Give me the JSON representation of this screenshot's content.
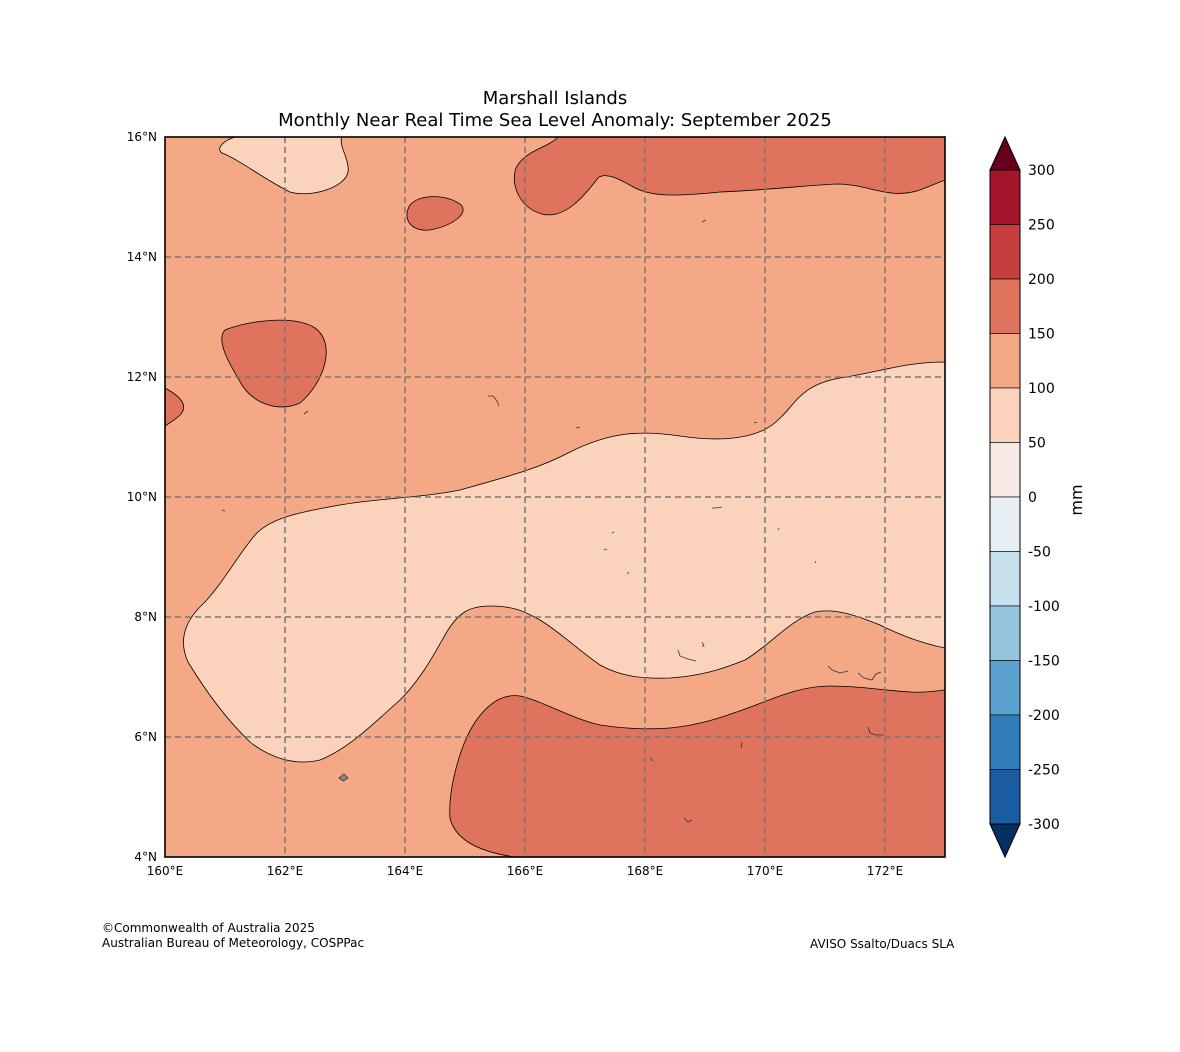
{
  "title": {
    "line1": "Marshall Islands",
    "line2": "Monthly Near Real Time Sea Level Anomaly: September 2025"
  },
  "map": {
    "lon_range": [
      160,
      173
    ],
    "lat_range": [
      4,
      16
    ],
    "lon_ticks": [
      {
        "value": 160,
        "label": "160°E"
      },
      {
        "value": 162,
        "label": "162°E"
      },
      {
        "value": 164,
        "label": "164°E"
      },
      {
        "value": 166,
        "label": "166°E"
      },
      {
        "value": 168,
        "label": "168°E"
      },
      {
        "value": 170,
        "label": "170°E"
      },
      {
        "value": 172,
        "label": "172°E"
      }
    ],
    "lat_ticks": [
      {
        "value": 4,
        "label": "4°N"
      },
      {
        "value": 6,
        "label": "6°N"
      },
      {
        "value": 8,
        "label": "8°N"
      },
      {
        "value": 10,
        "label": "10°N"
      },
      {
        "value": 12,
        "label": "12°N"
      },
      {
        "value": 14,
        "label": "14°N"
      },
      {
        "value": 16,
        "label": "16°N"
      }
    ],
    "gridlines": true,
    "fill_colors": {
      "50_100": "#fbd3bd",
      "100_150": "#f4a886",
      "150_200": "#e0735d"
    }
  },
  "colorbar": {
    "unit_label": "mm",
    "levels": [
      -300,
      -250,
      -200,
      -150,
      -100,
      -50,
      0,
      50,
      100,
      150,
      200,
      250,
      300
    ],
    "labels": [
      "300",
      "250",
      "200",
      "150",
      "100",
      "50",
      "0",
      "-50",
      "-100",
      "-150",
      "-200",
      "-250",
      "-300"
    ],
    "colors": [
      "#a51429",
      "#c73e3f",
      "#e0735d",
      "#f4a886",
      "#fbd3bd",
      "#f8ebe5",
      "#e6eff4",
      "#c6e0ee",
      "#95c6de",
      "#5aa1cf",
      "#307dbc",
      "#195ca0"
    ],
    "over_color": "#67001f",
    "under_color": "#053061"
  },
  "footer": {
    "copyright_line1": "©Commonwealth of Australia 2025",
    "copyright_line2": "Australian Bureau of Meteorology, COSPPac",
    "source": "AVISO Ssalto/Duacs SLA"
  }
}
